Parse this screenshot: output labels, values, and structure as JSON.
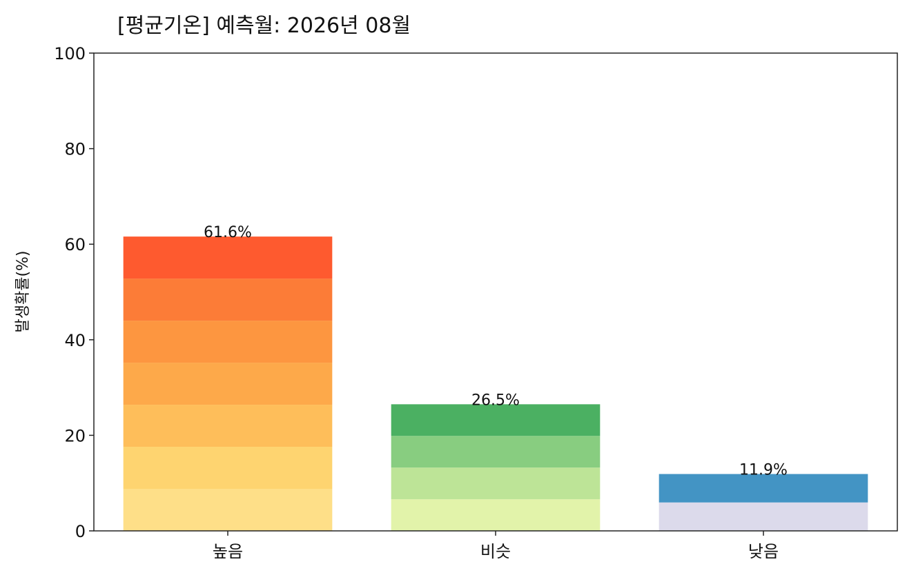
{
  "chart_data": {
    "type": "bar",
    "stacked_equal_segments": true,
    "title": "[평균기온] 예측월: 2026년 08월",
    "xlabel": "",
    "ylabel": "발생확률(%)",
    "ylim": [
      0,
      100
    ],
    "yticks": [
      "0",
      "20",
      "40",
      "60",
      "80",
      "100"
    ],
    "grid": false,
    "categories": [
      "높음",
      "비슷",
      "낮음"
    ],
    "values": [
      61.6,
      26.5,
      11.9
    ],
    "data_labels": [
      "61.6%",
      "26.5%",
      "11.9%"
    ],
    "segment_colors": [
      [
        "#fedf88",
        "#fed470",
        "#febe5a",
        "#fda94a",
        "#fd9640",
        "#fc7c37",
        "#fe5a2f"
      ],
      [
        "#e2f3aa",
        "#bde497",
        "#88cd80",
        "#4bb062"
      ],
      [
        "#dcdaeb",
        "#4394c4"
      ]
    ]
  }
}
